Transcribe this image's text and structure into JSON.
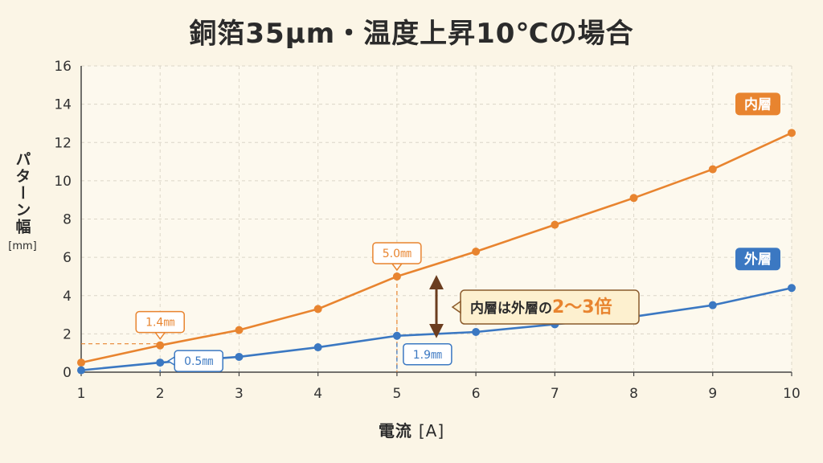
{
  "chart_data": {
    "type": "line",
    "title": "銅箔35μm・温度上昇10℃の場合",
    "xlabel": "電流",
    "xunit": "[A]",
    "ylabel": "パターン幅",
    "yunit": "[mm]",
    "x": [
      1,
      2,
      3,
      4,
      5,
      6,
      7,
      8,
      9,
      10
    ],
    "xlim": [
      1,
      10
    ],
    "ylim": [
      0,
      16
    ],
    "yticks": [
      0,
      2,
      4,
      6,
      8,
      10,
      12,
      14,
      16
    ],
    "grid": true,
    "series": [
      {
        "name": "内層",
        "color": "#e8842f",
        "values": [
          0.5,
          1.4,
          2.2,
          3.3,
          5.0,
          6.3,
          7.7,
          9.1,
          10.6,
          12.5
        ]
      },
      {
        "name": "外層",
        "color": "#3b78c2",
        "values": [
          0.1,
          0.5,
          0.8,
          1.3,
          1.9,
          2.1,
          2.5,
          2.9,
          3.5,
          4.4
        ]
      }
    ],
    "annotations": [
      {
        "series": 0,
        "x": 2,
        "text": "1.4㎜"
      },
      {
        "series": 0,
        "x": 5,
        "text": "5.0㎜"
      },
      {
        "series": 1,
        "x": 2,
        "text": "0.5㎜"
      },
      {
        "series": 1,
        "x": 5,
        "text": "1.9㎜"
      }
    ],
    "callout": {
      "prefix": "内層は外層の",
      "highlight": "2～3倍"
    }
  }
}
